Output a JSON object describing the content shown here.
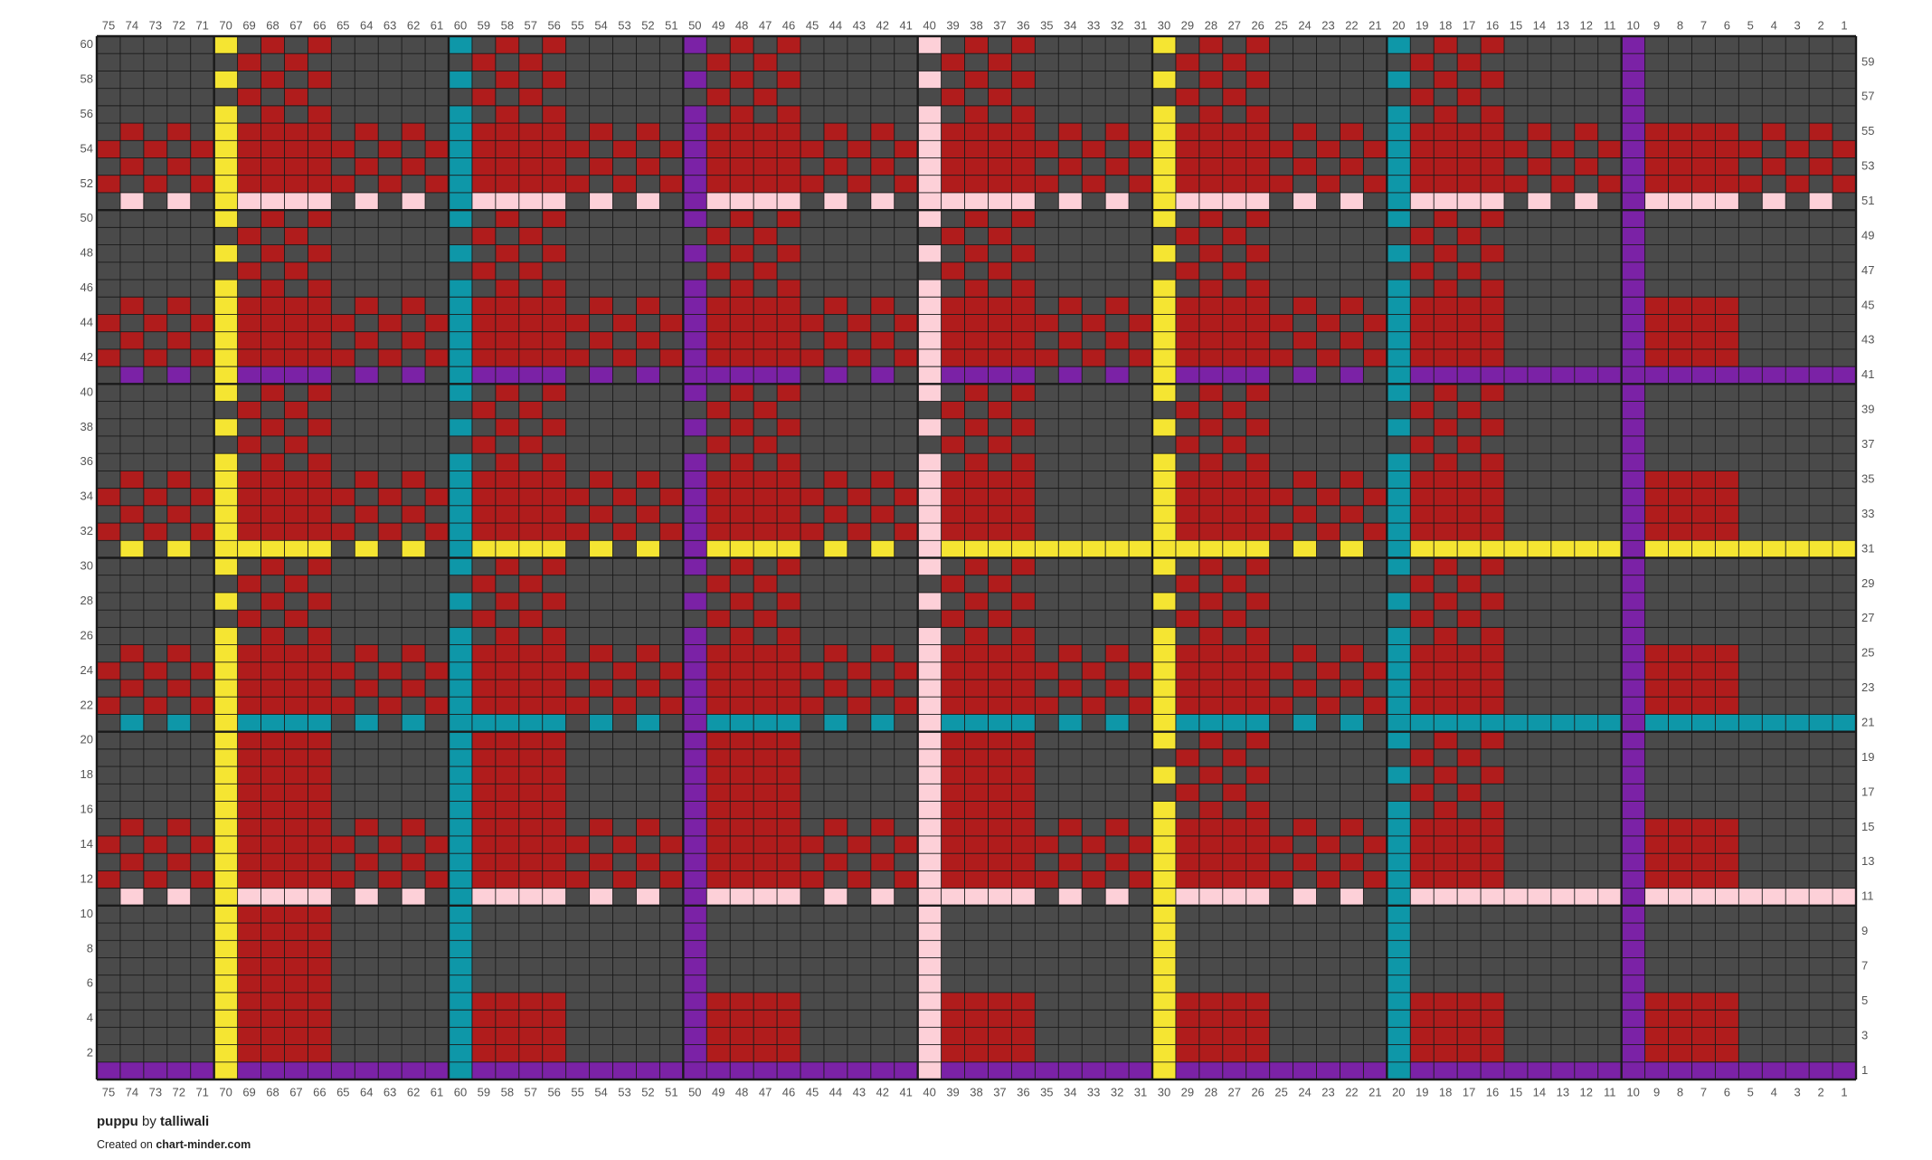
{
  "chart": {
    "columns": [
      75,
      74,
      73,
      72,
      71,
      70,
      69,
      68,
      67,
      66,
      65,
      64,
      63,
      62,
      61,
      60,
      59,
      58,
      57,
      56,
      55,
      54,
      53,
      52,
      51,
      50,
      49,
      48,
      47,
      46,
      45,
      44,
      43,
      42,
      41,
      40,
      39,
      38,
      37,
      36,
      35,
      34,
      33,
      32,
      31,
      30,
      29,
      28,
      27,
      26,
      25,
      24,
      23,
      22,
      21,
      20,
      19,
      18,
      17,
      16,
      15,
      14,
      13,
      12,
      11,
      10,
      9,
      8,
      7,
      6,
      5,
      4,
      3,
      2,
      1
    ],
    "rows_left": [
      60,
      58,
      56,
      54,
      52,
      50,
      48,
      46,
      44,
      42,
      40,
      38,
      36,
      34,
      32,
      30,
      28,
      26,
      24,
      22,
      20,
      18,
      16,
      14,
      12,
      10,
      8,
      6,
      4,
      2
    ],
    "rows_right": [
      59,
      57,
      55,
      53,
      51,
      49,
      47,
      45,
      43,
      41,
      39,
      37,
      35,
      33,
      31,
      29,
      27,
      25,
      23,
      21,
      19,
      17,
      15,
      13,
      11,
      9,
      7,
      5,
      3,
      1
    ]
  },
  "footer": {
    "title": "puppu",
    "by": "by",
    "author": "talliwali",
    "created_on": "Created on",
    "site": "chart-minder.com"
  }
}
